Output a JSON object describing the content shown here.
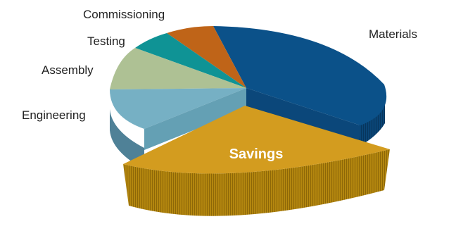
{
  "chart_data": {
    "type": "pie",
    "title": "",
    "exploded": "Savings",
    "slices": [
      {
        "label": "Materials",
        "value": 37,
        "color": "#0b5189"
      },
      {
        "label": "Savings",
        "value": 33,
        "color": "#d39c1f"
      },
      {
        "label": "Engineering",
        "value": 10,
        "color": "#76b0c4"
      },
      {
        "label": "Assembly",
        "value": 9,
        "color": "#aec194"
      },
      {
        "label": "Testing",
        "value": 5,
        "color": "#0f9395"
      },
      {
        "label": "Commissioning",
        "value": 6,
        "color": "#bf6418"
      }
    ]
  }
}
